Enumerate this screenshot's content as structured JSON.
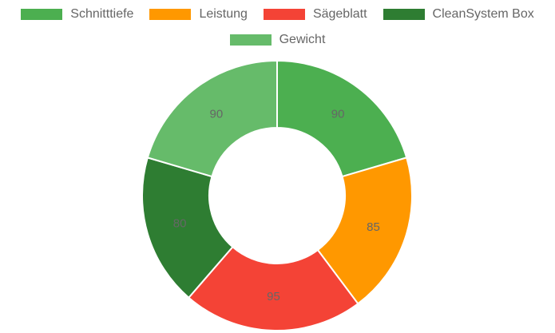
{
  "chart_data": {
    "type": "doughnut",
    "categories": [
      "Schnitttiefe",
      "Leistung",
      "Sägeblatt",
      "CleanSystem Box",
      "Gewicht"
    ],
    "values": [
      90,
      85,
      95,
      80,
      90
    ],
    "colors": [
      "#4caf50",
      "#ff9800",
      "#f44336",
      "#2e7d32",
      "#66bb6a"
    ],
    "legend": "top"
  }
}
